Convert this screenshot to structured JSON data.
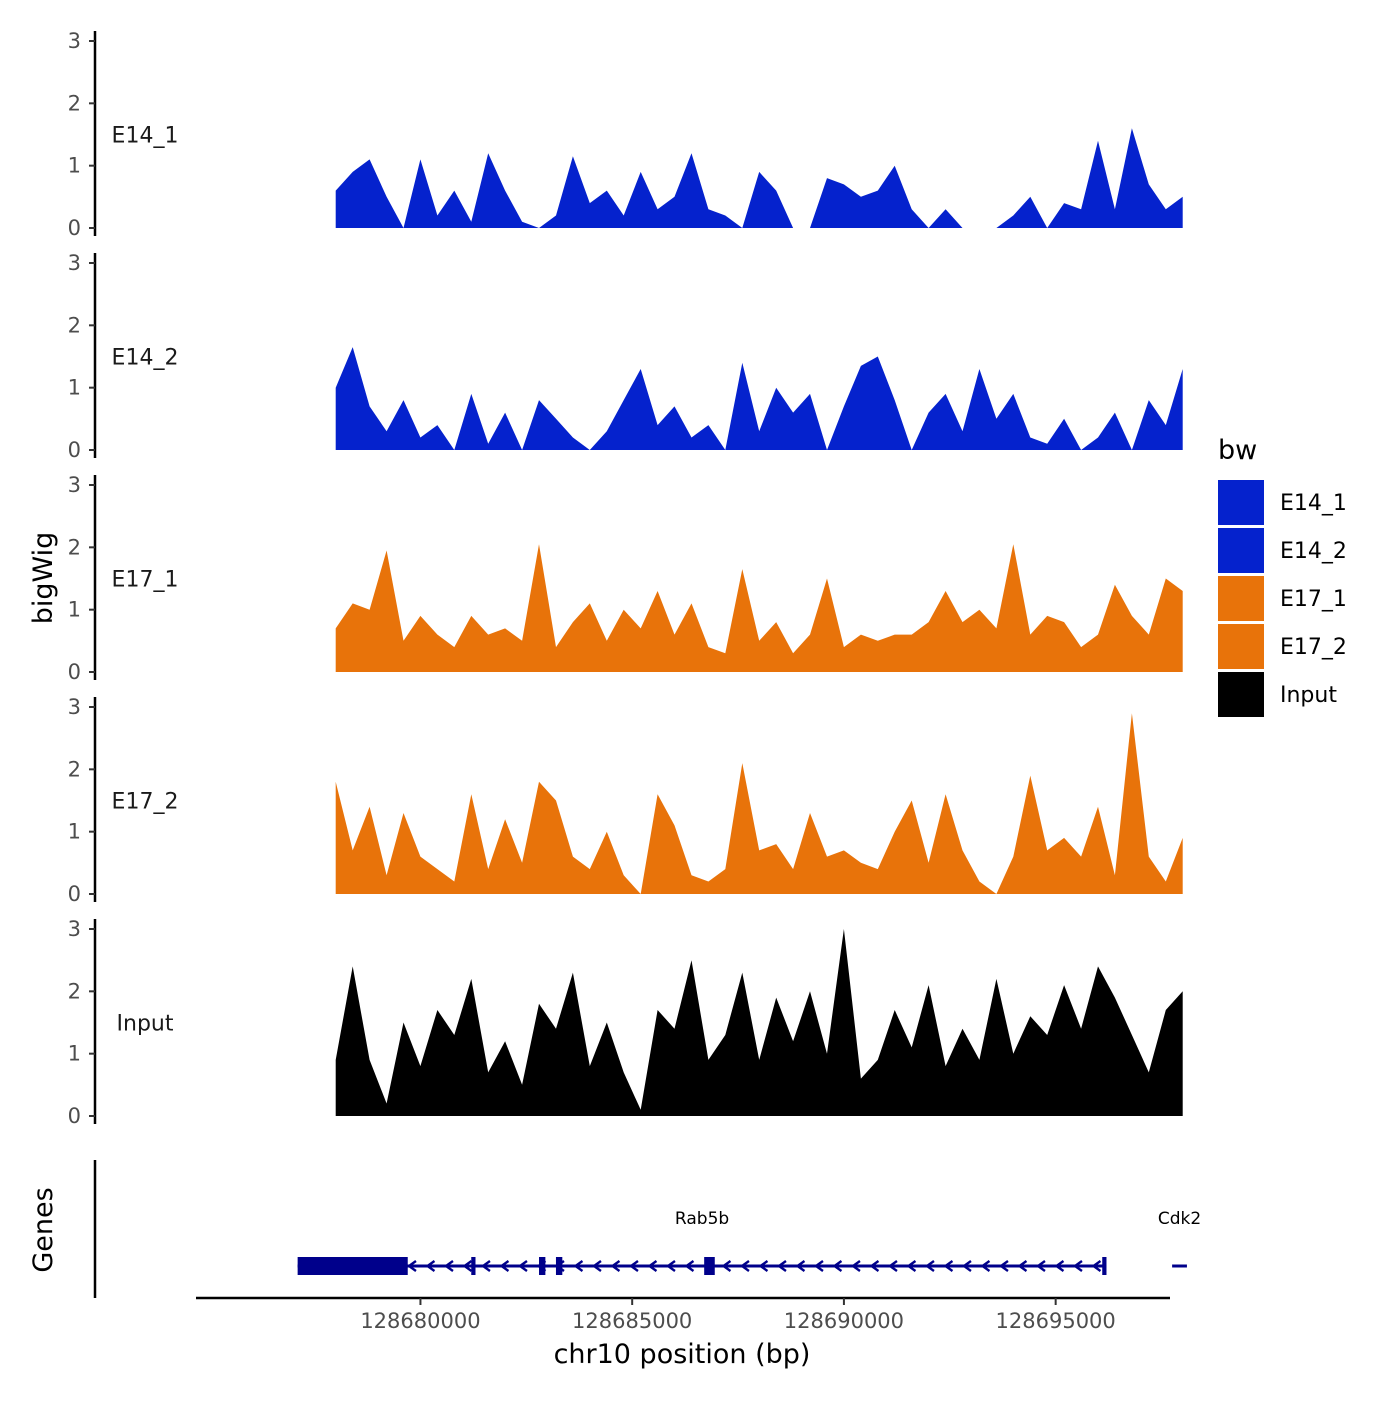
{
  "chart_data": {
    "type": "area",
    "region": "chr10:128677000-128698200",
    "xlabel": "chr10 position (bp)",
    "ylabel": "bigWig",
    "genes_label": "Genes",
    "xlim": [
      128674700,
      128697700
    ],
    "x_ticks": [
      128680000,
      128685000,
      128690000,
      128695000
    ],
    "x_tick_labels": [
      "128680000",
      "128685000",
      "128690000",
      "128695000"
    ],
    "ylim": [
      0,
      3
    ],
    "y_ticks": [
      0,
      1,
      2,
      3
    ],
    "y_tick_labels": [
      "0",
      "1",
      "2",
      "3"
    ],
    "legend": {
      "title": "bw",
      "entries": [
        {
          "label": "E14_1",
          "color": "#0522CD"
        },
        {
          "label": "E14_2",
          "color": "#0522CD"
        },
        {
          "label": "E17_1",
          "color": "#E8730A"
        },
        {
          "label": "E17_2",
          "color": "#E8730A"
        },
        {
          "label": "Input",
          "color": "#000000"
        }
      ]
    },
    "series": [
      {
        "name": "E14_1",
        "color": "#0522CD",
        "x": [
          128678000,
          128678400,
          128678800,
          128679200,
          128679600,
          128680000,
          128680400,
          128680800,
          128681200,
          128681600,
          128682000,
          128682400,
          128682800,
          128683200,
          128683600,
          128684000,
          128684400,
          128684800,
          128685200,
          128685600,
          128686000,
          128686400,
          128686800,
          128687200,
          128687600,
          128688000,
          128688400,
          128688800,
          128689200,
          128689600,
          128690000,
          128690400,
          128690800,
          128691200,
          128691600,
          128692000,
          128692400,
          128692800,
          128693200,
          128693600,
          128694000,
          128694400,
          128694800,
          128695200,
          128695600,
          128696000,
          128696400,
          128696800,
          128697200,
          128697600,
          128698000
        ],
        "values": [
          0.6,
          0.9,
          1.1,
          0.5,
          0.0,
          1.1,
          0.2,
          0.6,
          0.1,
          1.2,
          0.6,
          0.1,
          0.0,
          0.2,
          1.15,
          0.4,
          0.6,
          0.2,
          0.9,
          0.3,
          0.5,
          1.2,
          0.3,
          0.2,
          0.0,
          0.9,
          0.6,
          0.0,
          0.0,
          0.8,
          0.7,
          0.5,
          0.6,
          1.0,
          0.3,
          0.0,
          0.3,
          0.0,
          0.0,
          0.0,
          0.2,
          0.5,
          0.0,
          0.4,
          0.3,
          1.4,
          0.3,
          1.6,
          0.7,
          0.3,
          0.5
        ]
      },
      {
        "name": "E14_2",
        "color": "#0522CD",
        "x": [
          128678000,
          128678400,
          128678800,
          128679200,
          128679600,
          128680000,
          128680400,
          128680800,
          128681200,
          128681600,
          128682000,
          128682400,
          128682800,
          128683200,
          128683600,
          128684000,
          128684400,
          128684800,
          128685200,
          128685600,
          128686000,
          128686400,
          128686800,
          128687200,
          128687600,
          128688000,
          128688400,
          128688800,
          128689200,
          128689600,
          128690000,
          128690400,
          128690800,
          128691200,
          128691600,
          128692000,
          128692400,
          128692800,
          128693200,
          128693600,
          128694000,
          128694400,
          128694800,
          128695200,
          128695600,
          128696000,
          128696400,
          128696800,
          128697200,
          128697600,
          128698000
        ],
        "values": [
          1.0,
          1.65,
          0.7,
          0.3,
          0.8,
          0.2,
          0.4,
          0.0,
          0.9,
          0.1,
          0.6,
          0.0,
          0.8,
          0.5,
          0.2,
          0.0,
          0.3,
          0.8,
          1.3,
          0.4,
          0.7,
          0.2,
          0.4,
          0.0,
          1.4,
          0.3,
          1.0,
          0.6,
          0.9,
          0.0,
          0.7,
          1.35,
          1.5,
          0.8,
          0.0,
          0.6,
          0.9,
          0.3,
          1.3,
          0.5,
          0.9,
          0.2,
          0.1,
          0.5,
          0.0,
          0.2,
          0.6,
          0.0,
          0.8,
          0.4,
          1.3
        ]
      },
      {
        "name": "E17_1",
        "color": "#E8730A",
        "x": [
          128678000,
          128678400,
          128678800,
          128679200,
          128679600,
          128680000,
          128680400,
          128680800,
          128681200,
          128681600,
          128682000,
          128682400,
          128682800,
          128683200,
          128683600,
          128684000,
          128684400,
          128684800,
          128685200,
          128685600,
          128686000,
          128686400,
          128686800,
          128687200,
          128687600,
          128688000,
          128688400,
          128688800,
          128689200,
          128689600,
          128690000,
          128690400,
          128690800,
          128691200,
          128691600,
          128692000,
          128692400,
          128692800,
          128693200,
          128693600,
          128694000,
          128694400,
          128694800,
          128695200,
          128695600,
          128696000,
          128696400,
          128696800,
          128697200,
          128697600,
          128698000
        ],
        "values": [
          0.7,
          1.1,
          1.0,
          1.95,
          0.5,
          0.9,
          0.6,
          0.4,
          0.9,
          0.6,
          0.7,
          0.5,
          2.05,
          0.4,
          0.8,
          1.1,
          0.5,
          1.0,
          0.7,
          1.3,
          0.6,
          1.1,
          0.4,
          0.3,
          1.65,
          0.5,
          0.8,
          0.3,
          0.6,
          1.5,
          0.4,
          0.6,
          0.5,
          0.6,
          0.6,
          0.8,
          1.3,
          0.8,
          1.0,
          0.7,
          2.05,
          0.6,
          0.9,
          0.8,
          0.4,
          0.6,
          1.4,
          0.9,
          0.6,
          1.5,
          1.3
        ]
      },
      {
        "name": "E17_2",
        "color": "#E8730A",
        "x": [
          128678000,
          128678400,
          128678800,
          128679200,
          128679600,
          128680000,
          128680400,
          128680800,
          128681200,
          128681600,
          128682000,
          128682400,
          128682800,
          128683200,
          128683600,
          128684000,
          128684400,
          128684800,
          128685200,
          128685600,
          128686000,
          128686400,
          128686800,
          128687200,
          128687600,
          128688000,
          128688400,
          128688800,
          128689200,
          128689600,
          128690000,
          128690400,
          128690800,
          128691200,
          128691600,
          128692000,
          128692400,
          128692800,
          128693200,
          128693600,
          128694000,
          128694400,
          128694800,
          128695200,
          128695600,
          128696000,
          128696400,
          128696800,
          128697200,
          128697600,
          128698000
        ],
        "values": [
          1.8,
          0.7,
          1.4,
          0.3,
          1.3,
          0.6,
          0.4,
          0.2,
          1.6,
          0.4,
          1.2,
          0.5,
          1.8,
          1.5,
          0.6,
          0.4,
          1.0,
          0.3,
          0.0,
          1.6,
          1.1,
          0.3,
          0.2,
          0.4,
          2.1,
          0.7,
          0.8,
          0.4,
          1.3,
          0.6,
          0.7,
          0.5,
          0.4,
          1.0,
          1.5,
          0.5,
          1.6,
          0.7,
          0.2,
          0.0,
          0.6,
          1.9,
          0.7,
          0.9,
          0.6,
          1.4,
          0.3,
          2.9,
          0.6,
          0.2,
          0.9
        ]
      },
      {
        "name": "Input",
        "color": "#000000",
        "x": [
          128678000,
          128678400,
          128678800,
          128679200,
          128679600,
          128680000,
          128680400,
          128680800,
          128681200,
          128681600,
          128682000,
          128682400,
          128682800,
          128683200,
          128683600,
          128684000,
          128684400,
          128684800,
          128685200,
          128685600,
          128686000,
          128686400,
          128686800,
          128687200,
          128687600,
          128688000,
          128688400,
          128688800,
          128689200,
          128689600,
          128690000,
          128690400,
          128690800,
          128691200,
          128691600,
          128692000,
          128692400,
          128692800,
          128693200,
          128693600,
          128694000,
          128694400,
          128694800,
          128695200,
          128695600,
          128696000,
          128696400,
          128696800,
          128697200,
          128697600,
          128698000
        ],
        "values": [
          0.9,
          2.4,
          0.9,
          0.2,
          1.5,
          0.8,
          1.7,
          1.3,
          2.2,
          0.7,
          1.2,
          0.5,
          1.8,
          1.4,
          2.3,
          0.8,
          1.5,
          0.7,
          0.1,
          1.7,
          1.4,
          2.5,
          0.9,
          1.3,
          2.3,
          0.9,
          1.9,
          1.2,
          2.0,
          1.0,
          3.0,
          0.6,
          0.9,
          1.7,
          1.1,
          2.1,
          0.8,
          1.4,
          0.9,
          2.2,
          1.0,
          1.6,
          1.3,
          2.1,
          1.4,
          2.4,
          1.9,
          1.3,
          0.7,
          1.7,
          2.0
        ]
      }
    ],
    "genes": [
      {
        "name": "Rab5b",
        "strand": "-",
        "start": 128677100,
        "end": 128696200,
        "exons": [
          [
            128677100,
            128679700
          ],
          [
            128681200,
            128681300
          ],
          [
            128682800,
            128682950
          ],
          [
            128683200,
            128683350
          ],
          [
            128686700,
            128686950
          ],
          [
            128696100,
            128696200
          ]
        ]
      },
      {
        "name": "Cdk2",
        "strand": "-",
        "start": 128697750,
        "end": 128698100,
        "exons": []
      }
    ]
  }
}
